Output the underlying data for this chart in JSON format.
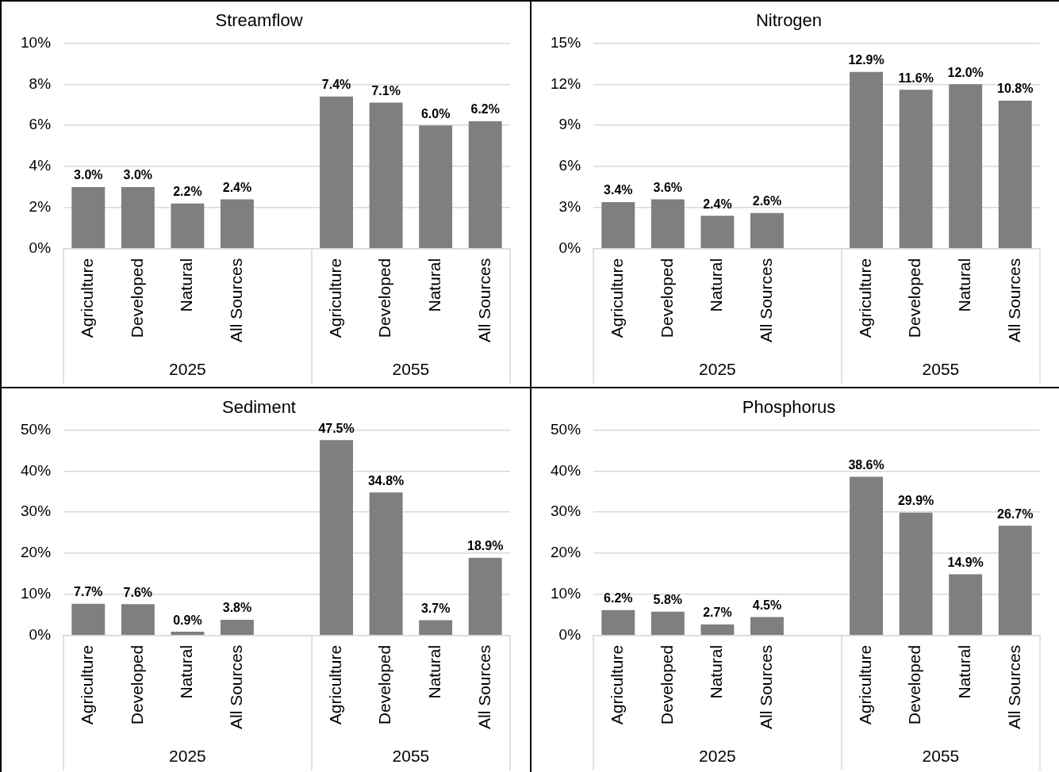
{
  "chart_data": [
    {
      "type": "bar",
      "title": "Streamflow",
      "categories": [
        "Agriculture",
        "Developed",
        "Natural",
        "All Sources",
        null,
        "Agriculture",
        "Developed",
        "Natural",
        "All Sources"
      ],
      "values": [
        3.0,
        3.0,
        2.2,
        2.4,
        null,
        7.4,
        7.1,
        6.0,
        6.2
      ],
      "value_labels": [
        "3.0%",
        "3.0%",
        "2.2%",
        "2.4%",
        null,
        "7.4%",
        "7.1%",
        "6.0%",
        "6.2%"
      ],
      "color": "#7f7f7f",
      "ylim": [
        0,
        10
      ],
      "yticks": [
        {
          "value": 0,
          "label": "0%"
        },
        {
          "value": 2,
          "label": "2%"
        },
        {
          "value": 4,
          "label": "4%"
        },
        {
          "value": 6,
          "label": "6%"
        },
        {
          "value": 8,
          "label": "8%"
        },
        {
          "value": 10,
          "label": "10%"
        }
      ],
      "grid": "y",
      "annotations": [
        "2025",
        "2055"
      ]
    },
    {
      "type": "bar",
      "title": "Nitrogen",
      "categories": [
        "Agriculture",
        "Developed",
        "Natural",
        "All Sources",
        null,
        "Agriculture",
        "Developed",
        "Natural",
        "All Sources"
      ],
      "values": [
        3.4,
        3.6,
        2.4,
        2.6,
        null,
        12.9,
        11.6,
        12.0,
        10.8
      ],
      "value_labels": [
        "3.4%",
        "3.6%",
        "2.4%",
        "2.6%",
        null,
        "12.9%",
        "11.6%",
        "12.0%",
        "10.8%"
      ],
      "color": "#7f7f7f",
      "ylim": [
        0,
        15
      ],
      "yticks": [
        {
          "value": 0,
          "label": "0%"
        },
        {
          "value": 3,
          "label": "3%"
        },
        {
          "value": 6,
          "label": "6%"
        },
        {
          "value": 9,
          "label": "9%"
        },
        {
          "value": 12,
          "label": "12%"
        },
        {
          "value": 15,
          "label": "15%"
        }
      ],
      "grid": "y",
      "annotations": [
        "2025",
        "2055"
      ]
    },
    {
      "type": "bar",
      "title": "Sediment",
      "categories": [
        "Agriculture",
        "Developed",
        "Natural",
        "All Sources",
        null,
        "Agriculture",
        "Developed",
        "Natural",
        "All Sources"
      ],
      "values": [
        7.7,
        7.6,
        0.9,
        3.8,
        null,
        47.5,
        34.8,
        3.7,
        18.9
      ],
      "value_labels": [
        "7.7%",
        "7.6%",
        "0.9%",
        "3.8%",
        null,
        "47.5%",
        "34.8%",
        "3.7%",
        "18.9%"
      ],
      "color": "#7f7f7f",
      "ylim": [
        0,
        50
      ],
      "yticks": [
        {
          "value": 0,
          "label": "0%"
        },
        {
          "value": 10,
          "label": "10%"
        },
        {
          "value": 20,
          "label": "20%"
        },
        {
          "value": 30,
          "label": "30%"
        },
        {
          "value": 40,
          "label": "40%"
        },
        {
          "value": 50,
          "label": "50%"
        }
      ],
      "grid": "y",
      "annotations": [
        "2025",
        "2055"
      ]
    },
    {
      "type": "bar",
      "title": "Phosphorus",
      "categories": [
        "Agriculture",
        "Developed",
        "Natural",
        "All Sources",
        null,
        "Agriculture",
        "Developed",
        "Natural",
        "All Sources"
      ],
      "values": [
        6.2,
        5.8,
        2.7,
        4.5,
        null,
        38.6,
        29.9,
        14.9,
        26.7
      ],
      "value_labels": [
        "6.2%",
        "5.8%",
        "2.7%",
        "4.5%",
        null,
        "38.6%",
        "29.9%",
        "14.9%",
        "26.7%"
      ],
      "color": "#7f7f7f",
      "ylim": [
        0,
        50
      ],
      "yticks": [
        {
          "value": 0,
          "label": "0%"
        },
        {
          "value": 10,
          "label": "10%"
        },
        {
          "value": 20,
          "label": "20%"
        },
        {
          "value": 30,
          "label": "30%"
        },
        {
          "value": 40,
          "label": "40%"
        },
        {
          "value": 50,
          "label": "50%"
        }
      ],
      "grid": "y",
      "annotations": [
        "2025",
        "2055"
      ]
    }
  ]
}
